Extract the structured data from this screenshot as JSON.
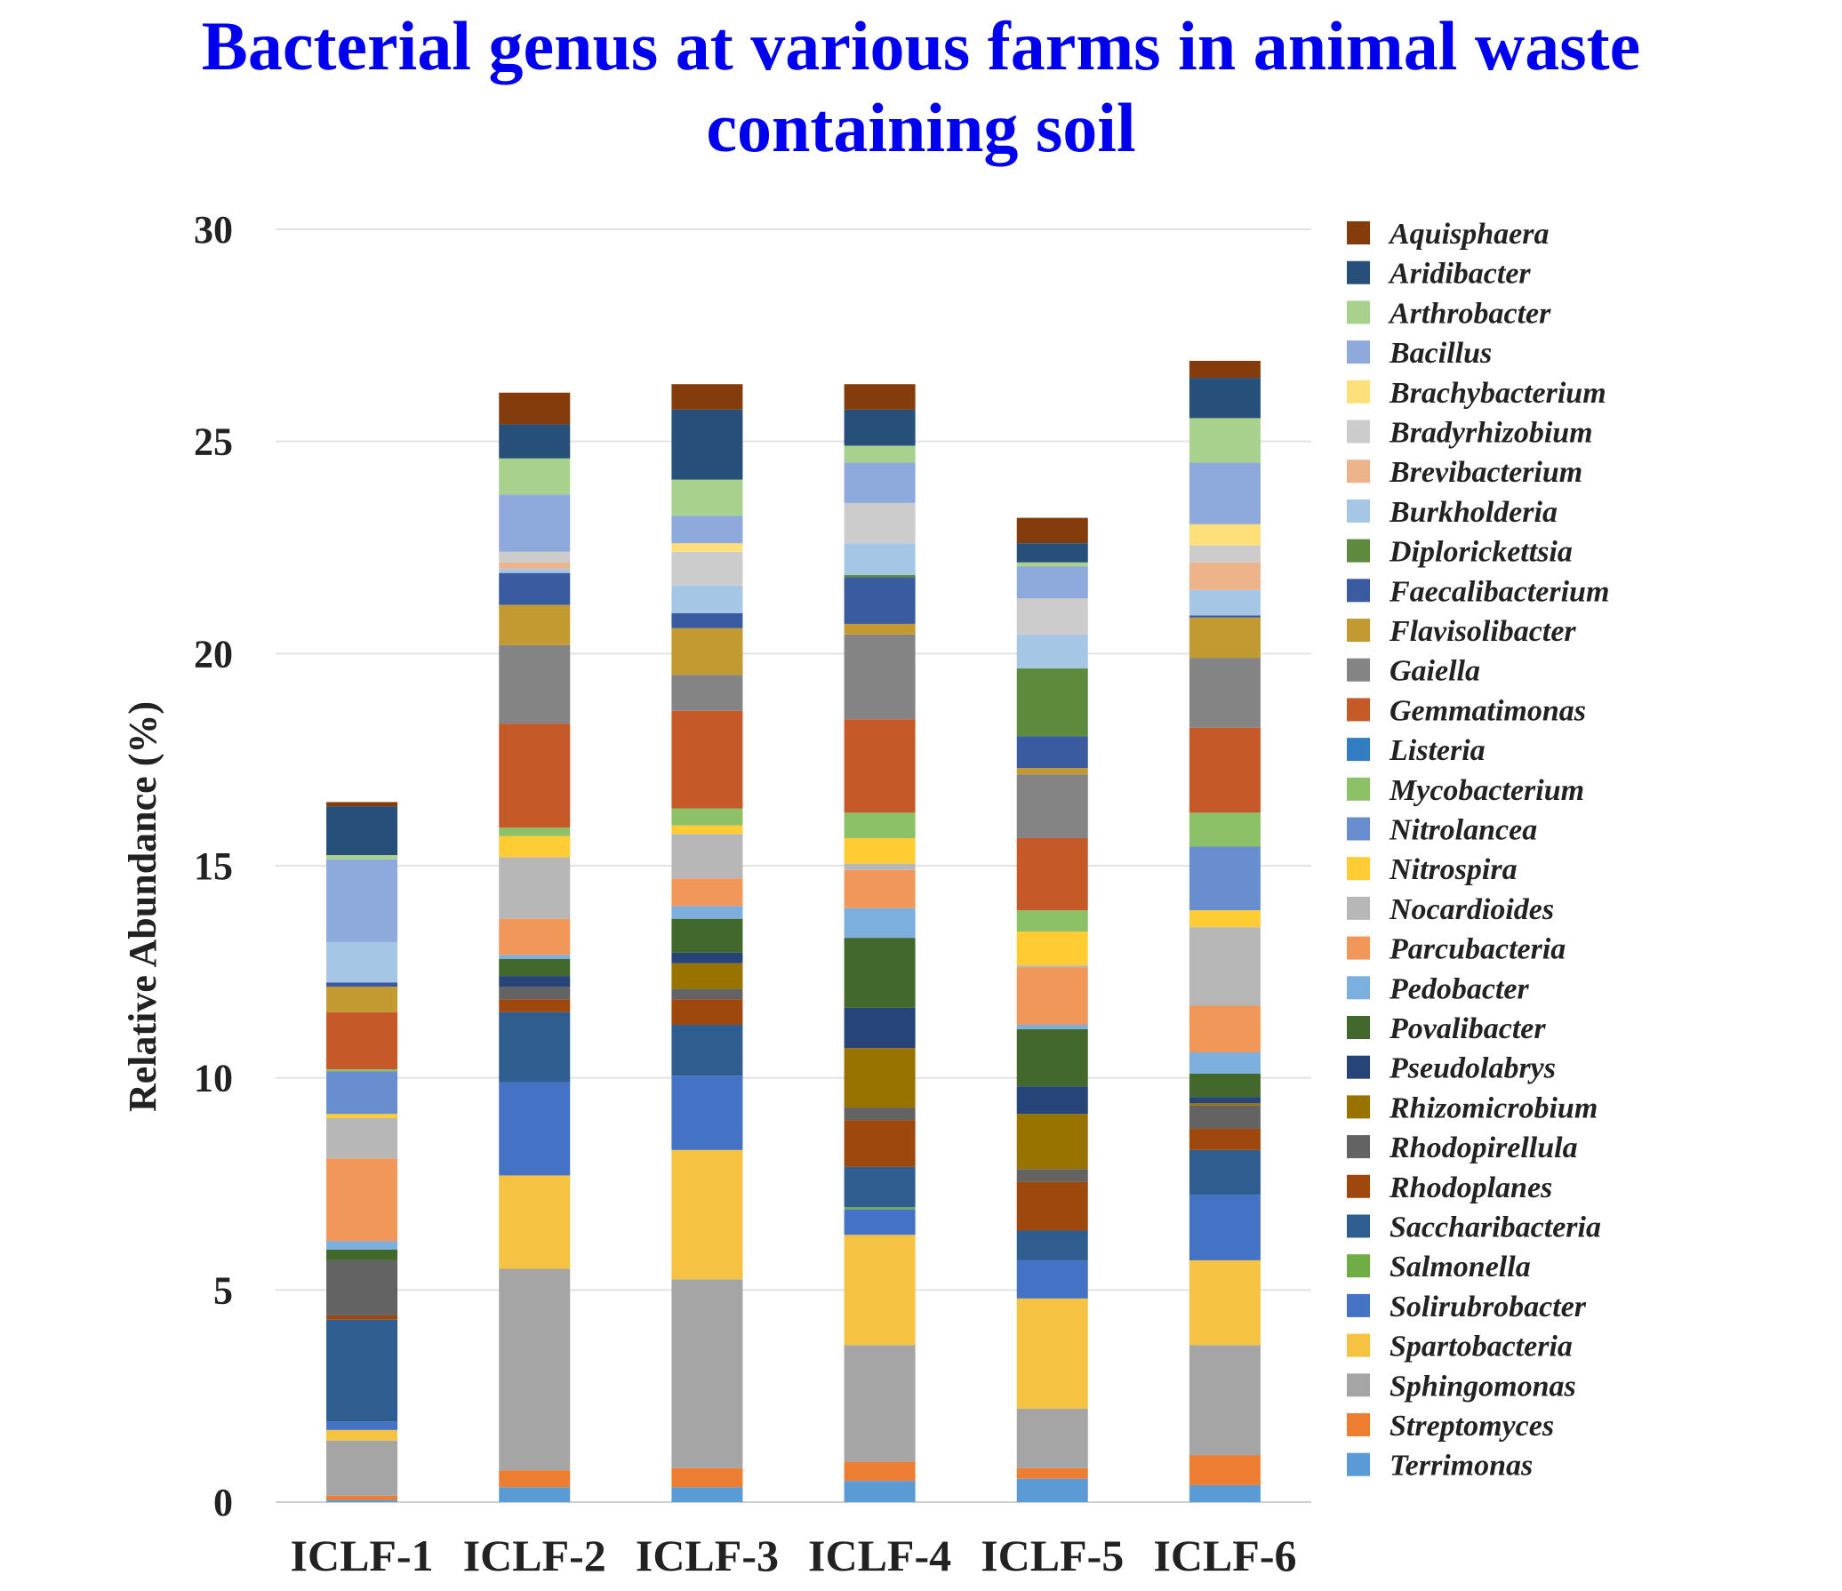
{
  "chart_data": {
    "type": "bar",
    "stacked": true,
    "title": "Bacterial genus at various farms in animal waste containing soil",
    "title_lines": [
      "Bacterial genus at various farms in animal waste",
      "containing soil"
    ],
    "xlabel": "",
    "ylabel": "Relative Abundance (%)",
    "ylim": [
      0,
      30
    ],
    "yticks": [
      "0",
      "5",
      "10",
      "15",
      "20",
      "25",
      "30"
    ],
    "grid": true,
    "legend_position": "right",
    "categories": [
      "ICLF-1",
      "ICLF-2",
      "ICLF-3",
      "ICLF-4",
      "ICLF-5",
      "ICLF-6"
    ],
    "series": [
      {
        "name": "Terrimonas",
        "color": "#5b9bd5",
        "values": [
          0.05,
          0.35,
          0.35,
          0.5,
          0.55,
          0.4
        ]
      },
      {
        "name": "Streptomyces",
        "color": "#ed7d31",
        "values": [
          0.1,
          0.4,
          0.45,
          0.45,
          0.25,
          0.7
        ]
      },
      {
        "name": "Sphingomonas",
        "color": "#a5a5a5",
        "values": [
          1.3,
          4.75,
          4.45,
          2.75,
          1.4,
          2.6
        ]
      },
      {
        "name": "Spartobacteria",
        "color": "#f5c242",
        "values": [
          0.25,
          2.2,
          3.05,
          2.6,
          2.6,
          2.0
        ]
      },
      {
        "name": "Solirubrobacter",
        "color": "#4472c4",
        "values": [
          0.2,
          2.2,
          1.75,
          0.6,
          0.9,
          1.55
        ]
      },
      {
        "name": "Salmonella",
        "color": "#70ad47",
        "values": [
          0.0,
          0.0,
          0.0,
          0.05,
          0.0,
          0.0
        ]
      },
      {
        "name": "Saccharibacteria",
        "color": "#2f5d8f",
        "values": [
          2.4,
          1.65,
          1.2,
          0.95,
          0.7,
          1.05
        ]
      },
      {
        "name": "Rhodoplanes",
        "color": "#9e480e",
        "values": [
          0.1,
          0.3,
          0.6,
          1.1,
          1.15,
          0.5
        ]
      },
      {
        "name": "Rhodopirellula",
        "color": "#636363",
        "values": [
          1.3,
          0.3,
          0.25,
          0.3,
          0.3,
          0.55
        ]
      },
      {
        "name": "Rhizomicrobium",
        "color": "#997300",
        "values": [
          0.0,
          0.0,
          0.6,
          1.4,
          1.3,
          0.05
        ]
      },
      {
        "name": "Pseudolabrys",
        "color": "#264478",
        "values": [
          0.0,
          0.25,
          0.25,
          0.95,
          0.65,
          0.15
        ]
      },
      {
        "name": "Povalibacter",
        "color": "#43682b",
        "values": [
          0.25,
          0.4,
          0.8,
          1.65,
          1.35,
          0.55
        ]
      },
      {
        "name": "Pedobacter",
        "color": "#7cafdd",
        "values": [
          0.2,
          0.1,
          0.3,
          0.7,
          0.1,
          0.5
        ]
      },
      {
        "name": "Parcubacteria",
        "color": "#f1975a",
        "values": [
          1.95,
          0.85,
          0.65,
          0.9,
          1.35,
          1.1
        ]
      },
      {
        "name": "Nocardioides",
        "color": "#b7b7b7",
        "values": [
          0.95,
          1.45,
          1.05,
          0.15,
          0.05,
          1.85
        ]
      },
      {
        "name": "Nitrospira",
        "color": "#ffcd33",
        "values": [
          0.1,
          0.5,
          0.2,
          0.6,
          0.8,
          0.4
        ]
      },
      {
        "name": "Nitrolancea",
        "color": "#698ed0",
        "values": [
          1.0,
          0.0,
          0.0,
          0.0,
          0.0,
          1.5
        ]
      },
      {
        "name": "Mycobacterium",
        "color": "#8cc168",
        "values": [
          0.05,
          0.2,
          0.4,
          0.6,
          0.5,
          0.8
        ]
      },
      {
        "name": "Listeria",
        "color": "#327dc2",
        "values": [
          0.0,
          0.0,
          0.0,
          0.0,
          0.0,
          0.0
        ]
      },
      {
        "name": "Gemmatimonas",
        "color": "#c55a28",
        "values": [
          1.35,
          2.45,
          2.3,
          2.2,
          1.7,
          2.0
        ]
      },
      {
        "name": "Gaiella",
        "color": "#848484",
        "values": [
          0.0,
          1.85,
          0.85,
          2.0,
          1.5,
          1.65
        ]
      },
      {
        "name": "Flavisolibacter",
        "color": "#c39a31",
        "values": [
          0.6,
          0.95,
          1.1,
          0.25,
          0.15,
          0.95
        ]
      },
      {
        "name": "Faecalibacterium",
        "color": "#3a5ba0",
        "values": [
          0.1,
          0.75,
          0.35,
          1.1,
          0.75,
          0.05
        ]
      },
      {
        "name": "Diplorickettsia",
        "color": "#5e8a3e",
        "values": [
          0.0,
          0.0,
          0.0,
          0.05,
          1.6,
          0.0
        ]
      },
      {
        "name": "Burkholderia",
        "color": "#a6c6e6",
        "values": [
          0.95,
          0.1,
          0.65,
          0.75,
          0.8,
          0.6
        ]
      },
      {
        "name": "Brevibacterium",
        "color": "#edb38b",
        "values": [
          0.0,
          0.15,
          0.0,
          0.0,
          0.0,
          0.65
        ]
      },
      {
        "name": "Bradyrhizobium",
        "color": "#cccccc",
        "values": [
          0.0,
          0.25,
          0.8,
          0.95,
          0.85,
          0.4
        ]
      },
      {
        "name": "Brachybacterium",
        "color": "#ffdf7a",
        "values": [
          0.0,
          0.0,
          0.2,
          0.0,
          0.0,
          0.5
        ]
      },
      {
        "name": "Bacillus",
        "color": "#8ea9db",
        "values": [
          1.95,
          1.35,
          0.65,
          0.95,
          0.75,
          1.45
        ]
      },
      {
        "name": "Arthrobacter",
        "color": "#a9d18e",
        "values": [
          0.1,
          0.85,
          0.85,
          0.4,
          0.1,
          1.05
        ]
      },
      {
        "name": "Aridibacter",
        "color": "#264f7a",
        "values": [
          1.15,
          0.8,
          1.65,
          0.85,
          0.45,
          0.95
        ]
      },
      {
        "name": "Aquisphaera",
        "color": "#843c0c",
        "values": [
          0.1,
          0.75,
          0.6,
          0.6,
          0.6,
          0.4
        ]
      }
    ]
  }
}
